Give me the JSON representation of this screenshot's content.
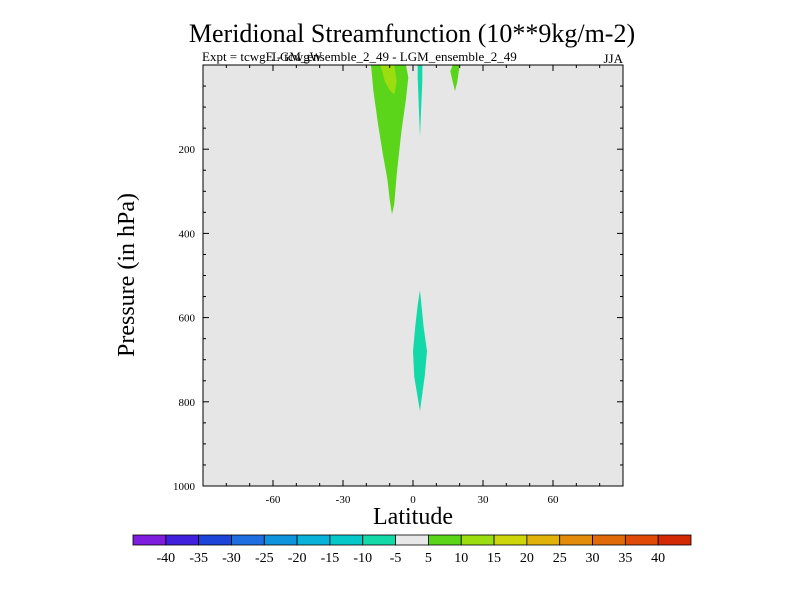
{
  "chart_data": {
    "type": "contour",
    "title": "Meridional Streamfunction (10**9kg/m-2)",
    "subtitle_left": "Expt = tcwgE - tcwgW",
    "subtitle_overlap": "LGM_ensemble_2_49 - LGM_ensemble_2_49",
    "season": "JJA",
    "xlabel": "Latitude",
    "ylabel": "Pressure (in hPa)",
    "xlim": [
      -90,
      90
    ],
    "ylim": [
      0,
      1000
    ],
    "y_inverted": true,
    "xticks": [
      -60,
      -30,
      0,
      30,
      60
    ],
    "yticks": [
      200,
      400,
      600,
      800,
      1000
    ],
    "x_minor_step": 10,
    "y_minor_step": 50,
    "background_color": "#e6e6e6",
    "colorbar": {
      "labels": [
        "-40",
        "-35",
        "-30",
        "-25",
        "-20",
        "-15",
        "-10",
        "-5",
        "5",
        "10",
        "15",
        "20",
        "25",
        "30",
        "35",
        "40"
      ],
      "colors": [
        "#7f1ddf",
        "#4020dc",
        "#1d44d8",
        "#1f6ee0",
        "#0e93dd",
        "#08b2d8",
        "#06c8c8",
        "#13d8a8",
        "#e8e8e8",
        "#5ad51a",
        "#9cdd10",
        "#ccd60a",
        "#e0b20a",
        "#e28c0a",
        "#e16a08",
        "#e04a06",
        "#d42a04"
      ]
    },
    "regions": [
      {
        "level": "5 to 10",
        "color": "#5ad51a",
        "points": [
          [
            -18,
            0
          ],
          [
            -3,
            0
          ],
          [
            -2,
            30
          ],
          [
            -3,
            80
          ],
          [
            -5,
            160
          ],
          [
            -7,
            260
          ],
          [
            -8,
            330
          ],
          [
            -9,
            355
          ],
          [
            -10,
            320
          ],
          [
            -11,
            270
          ],
          [
            -13,
            210
          ],
          [
            -15,
            140
          ],
          [
            -17,
            60
          ]
        ]
      },
      {
        "level": "10 to 15",
        "color": "#9cdd10",
        "points": [
          [
            -14,
            0
          ],
          [
            -8,
            0
          ],
          [
            -7,
            40
          ],
          [
            -8,
            70
          ],
          [
            -10,
            60
          ],
          [
            -12,
            40
          ],
          [
            -13,
            20
          ]
        ]
      },
      {
        "level": "-10 to -5",
        "color": "#13d8a8",
        "points": [
          [
            2,
            0
          ],
          [
            4,
            0
          ],
          [
            4,
            40
          ],
          [
            3.5,
            100
          ],
          [
            3,
            170
          ],
          [
            2.5,
            100
          ],
          [
            2,
            30
          ]
        ]
      },
      {
        "level": "5 to 10",
        "color": "#5ad51a",
        "points": [
          [
            17,
            0
          ],
          [
            20,
            0
          ],
          [
            19,
            40
          ],
          [
            18,
            62
          ],
          [
            17,
            40
          ],
          [
            16,
            15
          ]
        ]
      },
      {
        "level": "-10 to -5",
        "color": "#13d8a8",
        "points": [
          [
            3,
            535
          ],
          [
            4.5,
            620
          ],
          [
            6,
            680
          ],
          [
            5,
            740
          ],
          [
            3.5,
            800
          ],
          [
            3,
            822
          ],
          [
            2,
            790
          ],
          [
            0.5,
            740
          ],
          [
            0,
            680
          ],
          [
            1,
            620
          ],
          [
            2,
            570
          ]
        ]
      }
    ]
  }
}
